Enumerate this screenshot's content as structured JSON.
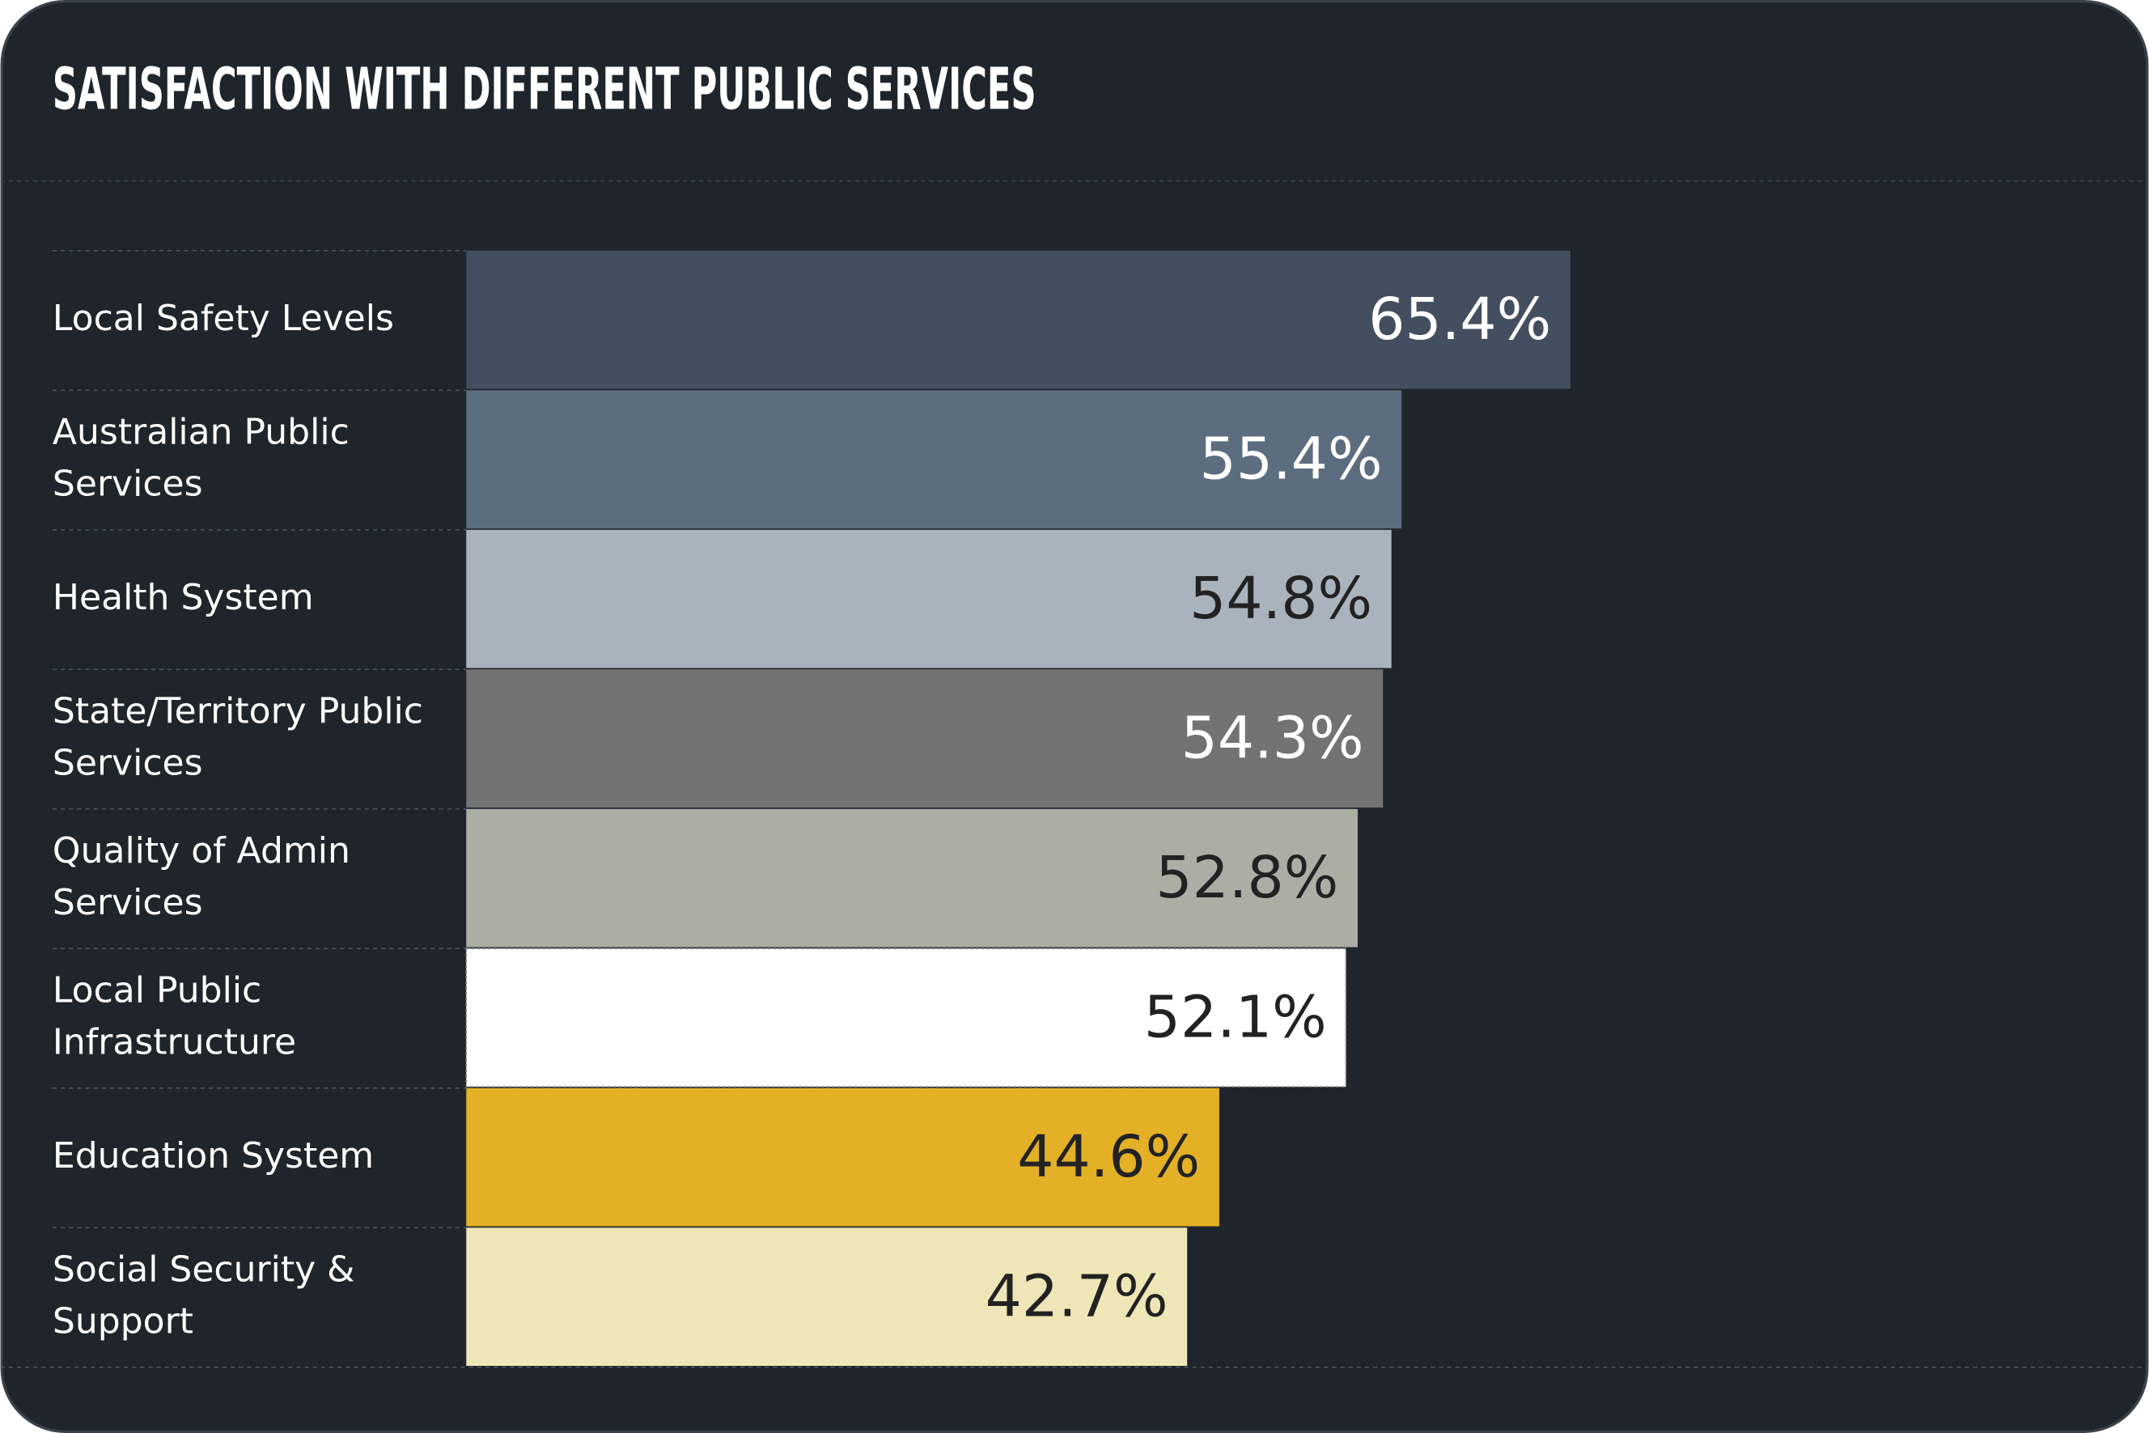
{
  "chart_data": {
    "type": "bar",
    "orientation": "horizontal",
    "title": "SATISFACTION WITH DIFFERENT PUBLIC SERVICES",
    "categories": [
      "Local Safety Levels",
      "Australian Public Services",
      "Health System",
      "State/Territory Public Services",
      "Quality of Admin Services",
      "Local Public Infrastructure",
      "Education System",
      "Social Security & Support"
    ],
    "values": [
      65.4,
      55.4,
      54.8,
      54.3,
      52.8,
      52.1,
      44.6,
      42.7
    ],
    "value_labels": [
      "65.4%",
      "55.4%",
      "54.8%",
      "54.3%",
      "52.8%",
      "52.1%",
      "44.6%",
      "42.7%"
    ],
    "colors": [
      "#434f5e",
      "#5d6d80",
      "#a9b3bd",
      "#737373",
      "#acada3",
      "#ffffff",
      "#e3b026",
      "#efe6b8"
    ]
  }
}
